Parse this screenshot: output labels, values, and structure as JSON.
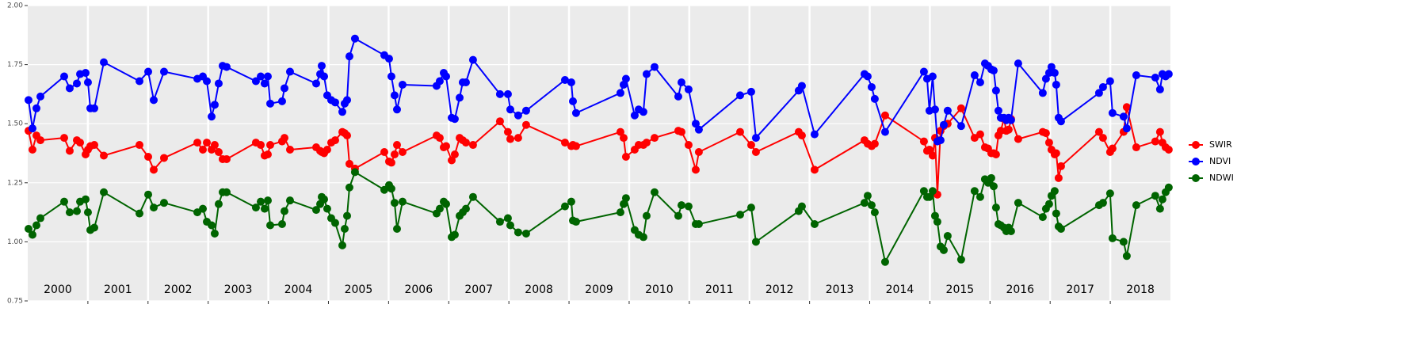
{
  "chart_data": {
    "type": "line",
    "x": [
      2000.013,
      2000.079,
      2000.145,
      2000.211,
      2000.606,
      2000.698,
      2000.817,
      2000.87,
      2000.962,
      2001.001,
      2001.041,
      2001.107,
      2001.265,
      2001.858,
      2002.003,
      2002.095,
      2002.266,
      2002.82,
      2002.912,
      2002.978,
      2003.057,
      2003.109,
      2003.175,
      2003.241,
      2003.307,
      2003.794,
      2003.874,
      2003.939,
      2003.992,
      2004.032,
      2004.229,
      2004.269,
      2004.361,
      2004.796,
      2004.862,
      2004.888,
      2004.928,
      2004.98,
      2005.046,
      2005.112,
      2005.231,
      2005.27,
      2005.31,
      2005.349,
      2005.441,
      2005.929,
      2006.008,
      2006.047,
      2006.1,
      2006.14,
      2006.232,
      2006.798,
      2006.851,
      2006.917,
      2006.957,
      2007.049,
      2007.101,
      2007.181,
      2007.233,
      2007.286,
      2007.404,
      2007.852,
      2007.984,
      2008.024,
      2008.155,
      2008.287,
      2008.933,
      2009.038,
      2009.065,
      2009.117,
      2009.855,
      2009.908,
      2009.947,
      2010.092,
      2010.158,
      2010.237,
      2010.29,
      2010.422,
      2010.817,
      2010.87,
      2010.988,
      2011.107,
      2011.159,
      2011.845,
      2012.029,
      2012.108,
      2012.819,
      2012.872,
      2013.083,
      2013.913,
      2013.966,
      2014.032,
      2014.084,
      2014.256,
      2014.901,
      2014.954,
      2014.993,
      2015.046,
      2015.086,
      2015.125,
      2015.178,
      2015.231,
      2015.296,
      2015.52,
      2015.744,
      2015.837,
      2015.916,
      2015.968,
      2016.021,
      2016.061,
      2016.1,
      2016.14,
      2016.179,
      2016.232,
      2016.271,
      2016.311,
      2016.35,
      2016.469,
      2016.877,
      2016.93,
      2016.983,
      2017.022,
      2017.075,
      2017.101,
      2017.141,
      2017.181,
      2017.813,
      2017.879,
      2017.997,
      2018.037,
      2018.221,
      2018.274,
      2018.432,
      2018.748,
      2018.827,
      2018.867,
      2018.92,
      2018.972
    ],
    "series": [
      {
        "name": "SWIR",
        "color": "#ff0000",
        "values": [
          1.47,
          1.39,
          1.45,
          1.43,
          1.44,
          1.385,
          1.43,
          1.42,
          1.37,
          1.39,
          1.405,
          1.41,
          1.365,
          1.41,
          1.36,
          1.305,
          1.355,
          1.42,
          1.39,
          1.42,
          1.39,
          1.41,
          1.38,
          1.35,
          1.35,
          1.42,
          1.41,
          1.365,
          1.37,
          1.41,
          1.425,
          1.44,
          1.39,
          1.4,
          1.385,
          1.38,
          1.375,
          1.39,
          1.42,
          1.43,
          1.465,
          1.46,
          1.45,
          1.33,
          1.31,
          1.38,
          1.34,
          1.335,
          1.37,
          1.41,
          1.38,
          1.45,
          1.44,
          1.4,
          1.405,
          1.345,
          1.37,
          1.44,
          1.43,
          1.42,
          1.41,
          1.51,
          1.465,
          1.435,
          1.44,
          1.495,
          1.42,
          1.405,
          1.41,
          1.405,
          1.465,
          1.44,
          1.36,
          1.39,
          1.41,
          1.41,
          1.42,
          1.44,
          1.47,
          1.465,
          1.41,
          1.305,
          1.38,
          1.465,
          1.41,
          1.38,
          1.465,
          1.45,
          1.305,
          1.43,
          1.415,
          1.405,
          1.415,
          1.535,
          1.425,
          1.385,
          1.39,
          1.365,
          1.44,
          1.2,
          1.47,
          1.49,
          1.5,
          1.565,
          1.44,
          1.455,
          1.4,
          1.395,
          1.375,
          1.375,
          1.37,
          1.45,
          1.47,
          1.52,
          1.47,
          1.475,
          1.52,
          1.435,
          1.465,
          1.46,
          1.42,
          1.39,
          1.37,
          1.375,
          1.27,
          1.32,
          1.465,
          1.44,
          1.38,
          1.395,
          1.465,
          1.57,
          1.4,
          1.425,
          1.465,
          1.42,
          1.4,
          1.39
        ]
      },
      {
        "name": "NDVI",
        "color": "#0000ff",
        "values": [
          1.6,
          1.48,
          1.565,
          1.615,
          1.7,
          1.65,
          1.67,
          1.71,
          1.715,
          1.675,
          1.565,
          1.565,
          1.76,
          1.68,
          1.72,
          1.6,
          1.72,
          1.69,
          1.7,
          1.68,
          1.53,
          1.58,
          1.67,
          1.745,
          1.74,
          1.68,
          1.7,
          1.67,
          1.7,
          1.585,
          1.595,
          1.65,
          1.72,
          1.67,
          1.71,
          1.745,
          1.7,
          1.62,
          1.6,
          1.59,
          1.55,
          1.585,
          1.6,
          1.785,
          1.86,
          1.79,
          1.775,
          1.7,
          1.62,
          1.56,
          1.665,
          1.66,
          1.68,
          1.715,
          1.7,
          1.525,
          1.52,
          1.61,
          1.675,
          1.675,
          1.77,
          1.625,
          1.625,
          1.56,
          1.535,
          1.555,
          1.685,
          1.675,
          1.595,
          1.545,
          1.63,
          1.665,
          1.69,
          1.535,
          1.56,
          1.55,
          1.71,
          1.74,
          1.615,
          1.675,
          1.645,
          1.5,
          1.475,
          1.62,
          1.635,
          1.44,
          1.64,
          1.66,
          1.455,
          1.71,
          1.7,
          1.655,
          1.605,
          1.465,
          1.72,
          1.69,
          1.555,
          1.7,
          1.56,
          1.425,
          1.43,
          1.495,
          1.555,
          1.49,
          1.705,
          1.675,
          1.755,
          1.745,
          1.73,
          1.725,
          1.64,
          1.555,
          1.525,
          1.525,
          1.515,
          1.525,
          1.515,
          1.755,
          1.63,
          1.69,
          1.715,
          1.74,
          1.715,
          1.665,
          1.525,
          1.51,
          1.63,
          1.655,
          1.68,
          1.545,
          1.53,
          1.48,
          1.705,
          1.695,
          1.645,
          1.71,
          1.7,
          1.71
        ]
      },
      {
        "name": "NDWI",
        "color": "#006400",
        "values": [
          1.055,
          1.03,
          1.07,
          1.1,
          1.17,
          1.125,
          1.13,
          1.17,
          1.18,
          1.125,
          1.05,
          1.06,
          1.21,
          1.12,
          1.2,
          1.145,
          1.165,
          1.125,
          1.14,
          1.085,
          1.07,
          1.035,
          1.16,
          1.21,
          1.21,
          1.145,
          1.17,
          1.14,
          1.175,
          1.07,
          1.075,
          1.13,
          1.175,
          1.135,
          1.16,
          1.19,
          1.18,
          1.14,
          1.1,
          1.08,
          0.985,
          1.055,
          1.11,
          1.23,
          1.295,
          1.22,
          1.24,
          1.225,
          1.165,
          1.055,
          1.17,
          1.12,
          1.14,
          1.17,
          1.16,
          1.02,
          1.03,
          1.11,
          1.125,
          1.14,
          1.19,
          1.085,
          1.1,
          1.07,
          1.04,
          1.035,
          1.15,
          1.17,
          1.09,
          1.085,
          1.125,
          1.16,
          1.185,
          1.05,
          1.03,
          1.02,
          1.11,
          1.21,
          1.11,
          1.155,
          1.15,
          1.075,
          1.075,
          1.115,
          1.145,
          1.0,
          1.13,
          1.15,
          1.075,
          1.165,
          1.195,
          1.155,
          1.125,
          0.915,
          1.215,
          1.19,
          1.19,
          1.215,
          1.11,
          1.085,
          0.98,
          0.965,
          1.025,
          0.925,
          1.215,
          1.19,
          1.265,
          1.25,
          1.27,
          1.235,
          1.145,
          1.075,
          1.07,
          1.06,
          1.045,
          1.06,
          1.045,
          1.165,
          1.105,
          1.14,
          1.16,
          1.195,
          1.215,
          1.12,
          1.065,
          1.055,
          1.155,
          1.165,
          1.205,
          1.015,
          1.0,
          0.94,
          1.155,
          1.195,
          1.14,
          1.18,
          1.21,
          1.23
        ]
      }
    ],
    "year_bands": [
      "2000",
      "2001",
      "2002",
      "2003",
      "2004",
      "2005",
      "2006",
      "2007",
      "2008",
      "2009",
      "2010",
      "2011",
      "2012",
      "2013",
      "2014",
      "2015",
      "2016",
      "2017",
      "2018"
    ],
    "xlim": [
      2000,
      2019
    ],
    "xticks": [
      2001,
      2002,
      2003,
      2004,
      2005,
      2006,
      2007,
      2008,
      2009,
      2010,
      2011,
      2012,
      2013,
      2014,
      2015,
      2016,
      2017,
      2018
    ],
    "ylim": [
      0.75,
      2.0
    ],
    "yticks": [
      {
        "value": 0.75,
        "label": "0.75"
      },
      {
        "value": 1.0,
        "label": "1.00"
      },
      {
        "value": 1.25,
        "label": "1.25"
      },
      {
        "value": 1.5,
        "label": "1.50"
      },
      {
        "value": 1.75,
        "label": "1.75"
      },
      {
        "value": 2.0,
        "label": "2.00"
      }
    ],
    "grid": true,
    "legend": "right"
  }
}
